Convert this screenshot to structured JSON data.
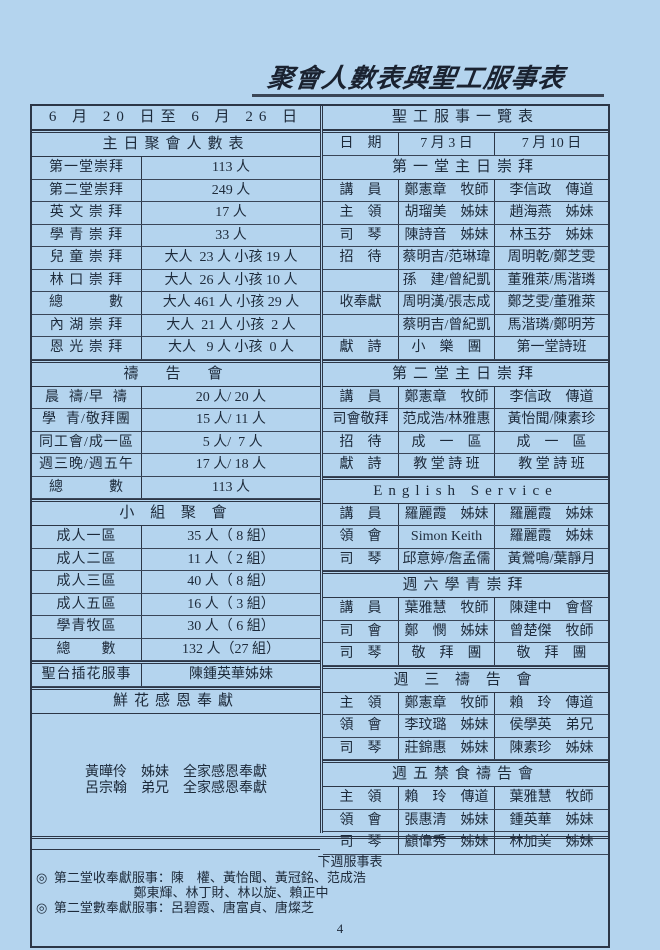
{
  "title": "聚會人數表與聖工服事表",
  "left": {
    "date_range": "6 月 20 日至 6 月 26 日",
    "sections": [
      {
        "title": "主日聚會人數表",
        "rows": [
          [
            "第一堂崇拜",
            "113 人"
          ],
          [
            "第二堂崇拜",
            "249 人"
          ],
          [
            "英 文 崇 拜",
            "17 人"
          ],
          [
            "學 青 崇 拜",
            "33 人"
          ],
          [
            "兒 童 崇 拜",
            "大人  23 人 小孩 19 人"
          ],
          [
            "林 口 崇 拜",
            "大人  26 人 小孩 10 人"
          ],
          [
            "總　　　數",
            "大人 461 人 小孩 29 人"
          ],
          [
            "內 湖 崇 拜",
            "大人  21 人 小孩  2 人"
          ],
          [
            "恩 光 崇 拜",
            "大人   9 人 小孩  0 人"
          ]
        ]
      },
      {
        "title": "禱　告　會",
        "rows": [
          [
            "晨  禱/早  禱",
            "20 人/ 20 人"
          ],
          [
            "學  青/敬拜團",
            "15 人/ 11 人"
          ],
          [
            "同工會/成一區",
            " 5 人/  7 人"
          ],
          [
            "週三晚/週五午",
            "17 人/ 18 人"
          ],
          [
            "總　　　數",
            "113 人"
          ]
        ]
      },
      {
        "title": "小 組 聚 會",
        "rows": [
          [
            "成人一區",
            "35 人（ 8 組）"
          ],
          [
            "成人二區",
            "11 人（ 2 組）"
          ],
          [
            "成人三區",
            "40 人（ 8 組）"
          ],
          [
            "成人五區",
            "16 人（ 3 組）"
          ],
          [
            "學青牧區",
            "30 人（ 6 組）"
          ],
          [
            "總　　數",
            "132 人（27 組）"
          ]
        ]
      },
      {
        "title": "",
        "rows": [
          [
            "聖台插花服事",
            "陳鍾英華姊妹"
          ]
        ]
      }
    ],
    "flower": {
      "title": "鮮花感恩奉獻",
      "lines": [
        "黃曄伶　姊妹　全家感恩奉獻",
        "呂宗翰　弟兄　全家感恩奉獻"
      ]
    }
  },
  "right": {
    "title": "聖工服事一覽表",
    "date_row": [
      "日　期",
      "7 月 3 日",
      "7 月 10 日"
    ],
    "sections": [
      {
        "title": "第一堂主日崇拜",
        "rows": [
          [
            "講　員",
            "鄭憲章　牧師",
            "李信政　傳道"
          ],
          [
            "主　領",
            "胡瑠美　姊妹",
            "趙海燕　姊妹"
          ],
          [
            "司　琴",
            "陳詩音　姊妹",
            "林玉芬　姊妹"
          ],
          [
            "招　待",
            "蔡明吉/范琳瑋",
            "周明乾/鄭芝雯"
          ],
          [
            "",
            "孫　建/曾紀凱",
            "董雅萊/馬湝璘"
          ],
          [
            "收奉獻",
            "周明漢/張志成",
            "鄭芝雯/董雅萊"
          ],
          [
            "",
            "蔡明吉/曾紀凱",
            "馬湝璘/鄭明芳"
          ],
          [
            "獻　詩",
            "小　樂　團",
            "第一堂詩班"
          ]
        ]
      },
      {
        "title": "第二堂主日崇拜",
        "rows": [
          [
            "講　員",
            "鄭憲章　牧師",
            "李信政　傳道"
          ],
          [
            "司會敬拜",
            "范成浩/林雅惠",
            "黃怡聞/陳素珍"
          ],
          [
            "招　待",
            "成　一　區",
            "成　一　區"
          ],
          [
            "獻　詩",
            "教 堂 詩 班",
            "教 堂 詩 班"
          ]
        ]
      },
      {
        "title": "English Service",
        "rows": [
          [
            "講　員",
            "羅麗霞　姊妹",
            "羅麗霞　姊妹"
          ],
          [
            "領　會",
            "Simon Keith",
            "羅麗霞　姊妹"
          ],
          [
            "司　琴",
            "邱意婷/詹孟儒",
            "黃鶯鳴/葉靜月"
          ]
        ]
      },
      {
        "title": "週六學青崇拜",
        "rows": [
          [
            "講　員",
            "葉雅慧　牧師",
            "陳建中　會督"
          ],
          [
            "司　會",
            "鄭　憫　姊妹",
            "曾楚傑　牧師"
          ],
          [
            "司　琴",
            "敬　拜　團",
            "敬　拜　團"
          ]
        ]
      },
      {
        "title": "週 三 禱 告 會",
        "rows": [
          [
            "主　領",
            "鄭憲章　牧師",
            "賴　玲　傳道"
          ],
          [
            "領　會",
            "李玟璐　姊妹",
            "侯學英　弟兄"
          ],
          [
            "司　琴",
            "莊錦惠　姊妹",
            "陳素珍　姊妹"
          ]
        ]
      },
      {
        "title": "週五禁食禱告會",
        "rows": [
          [
            "主　領",
            "賴　玲　傳道",
            "葉雅慧　牧師"
          ],
          [
            "領　會",
            "張惠清　姊妹",
            "鍾英華　姊妹"
          ],
          [
            "司　琴",
            "顧偉秀　姊妹",
            "林加美　姊妹"
          ]
        ]
      }
    ]
  },
  "footer": {
    "title": "下週服事表",
    "lines": [
      "◎  第二堂收奉獻服事：陳　權、黃怡聞、黃冠銘、范成浩",
      "                              鄭東輝、林丁財、林以旋、賴正中",
      "◎  第二堂數奉獻服事：呂碧霞、唐富貞、唐燦芝"
    ],
    "page": "4"
  }
}
